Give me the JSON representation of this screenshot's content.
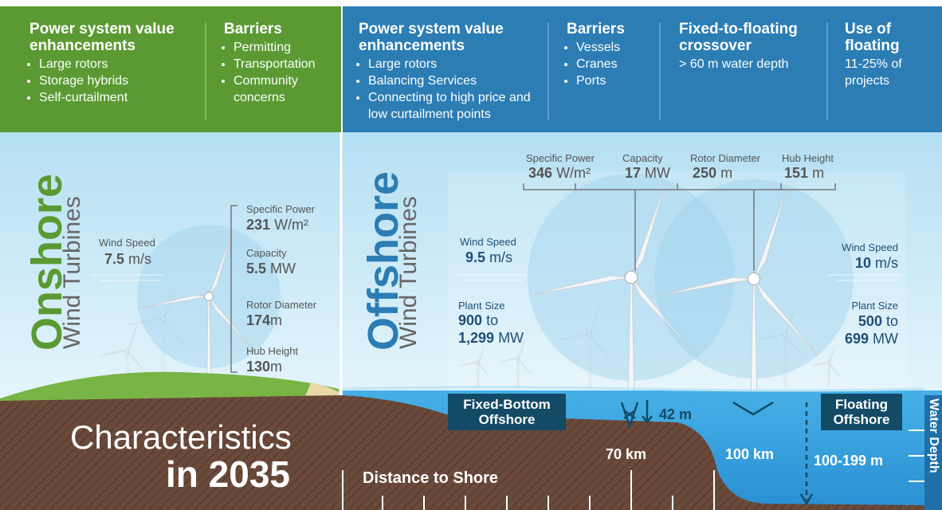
{
  "header": {
    "onshore": {
      "enhancements": {
        "title": "Power system value enhancements",
        "items": [
          "Large rotors",
          "Storage hybrids",
          "Self-curtailment"
        ]
      },
      "barriers": {
        "title": "Barriers",
        "items": [
          "Permitting",
          "Transportation",
          "Community concerns"
        ]
      }
    },
    "offshore": {
      "enhancements": {
        "title": "Power system value enhancements",
        "items": [
          "Large rotors",
          "Balancing Services",
          "Connecting to high price and low curtailment points"
        ]
      },
      "barriers": {
        "title": "Barriers",
        "items": [
          "Vessels",
          "Cranes",
          "Ports"
        ]
      },
      "crossover": {
        "title": "Fixed-to-floating crossover",
        "text": "> 60 m water depth"
      },
      "floating_use": {
        "title": "Use of floating",
        "text": "11-25% of projects"
      }
    }
  },
  "onshore": {
    "title": "Onshore",
    "subtitle": "Wind Turbines",
    "wind_speed": {
      "label": "Wind Speed",
      "value": "7.5",
      "unit": "m/s"
    },
    "specs": [
      {
        "label": "Specific Power",
        "value": "231",
        "unit": "W/m²"
      },
      {
        "label": "Capacity",
        "value": "5.5",
        "unit": "MW"
      },
      {
        "label": "Rotor Diameter",
        "value": "174",
        "unit": "m"
      },
      {
        "label": "Hub Height",
        "value": "130",
        "unit": "m"
      }
    ]
  },
  "offshore": {
    "title": "Offshore",
    "subtitle": "Wind Turbines",
    "specs": [
      {
        "label": "Specific Power",
        "value": "346",
        "unit": "W/m²"
      },
      {
        "label": "Capacity",
        "value": "17",
        "unit": "MW"
      },
      {
        "label": "Rotor Diameter",
        "value": "250",
        "unit": "m"
      },
      {
        "label": "Hub Height",
        "value": "151",
        "unit": "m"
      }
    ],
    "fixed": {
      "name": "Fixed-Bottom Offshore",
      "wind_speed": {
        "label": "Wind Speed",
        "value": "9.5",
        "unit": "m/s"
      },
      "plant_size": {
        "label": "Plant Size",
        "min": "900",
        "connector": "to",
        "max": "1,299",
        "unit": "MW"
      },
      "depth": "42 m",
      "distance": "70 km"
    },
    "floating": {
      "name": "Floating Offshore",
      "wind_speed": {
        "label": "Wind Speed",
        "value": "10",
        "unit": "m/s"
      },
      "plant_size": {
        "label": "Plant Size",
        "min": "500",
        "connector": "to",
        "max": "699",
        "unit": "MW"
      },
      "depth": "100-199 m",
      "distance": "100 km"
    },
    "distance_label": "Distance to Shore",
    "depth_label": "Water Depth"
  },
  "footer": {
    "line1": "Characteristics",
    "line2": "in 2035"
  }
}
